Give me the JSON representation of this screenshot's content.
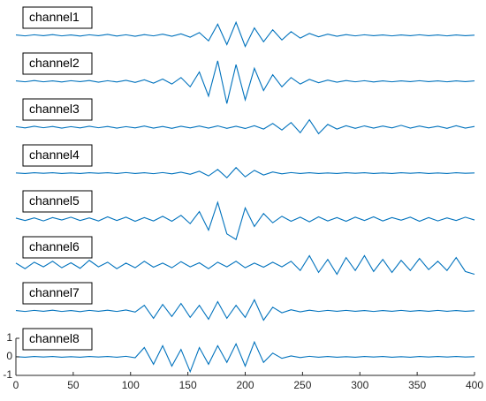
{
  "chart_data": {
    "type": "line",
    "x": [
      0,
      8,
      16,
      24,
      32,
      40,
      48,
      56,
      64,
      72,
      80,
      88,
      96,
      104,
      112,
      120,
      128,
      136,
      144,
      152,
      160,
      168,
      176,
      184,
      192,
      200,
      208,
      216,
      224,
      232,
      240,
      248,
      256,
      264,
      272,
      280,
      288,
      296,
      304,
      312,
      320,
      328,
      336,
      344,
      352,
      360,
      368,
      376,
      384,
      392,
      400
    ],
    "series": [
      {
        "name": "channel1",
        "color": "#0072bd",
        "values": [
          0.02,
          -0.03,
          0.03,
          -0.02,
          0.04,
          -0.03,
          0.02,
          -0.04,
          0.03,
          -0.02,
          0.05,
          -0.04,
          0.03,
          -0.05,
          0.04,
          -0.03,
          0.06,
          -0.05,
          0.08,
          -0.1,
          0.15,
          -0.3,
          0.6,
          -0.5,
          0.7,
          -0.6,
          0.4,
          -0.35,
          0.3,
          -0.25,
          0.2,
          -0.15,
          0.1,
          -0.08,
          0.06,
          -0.05,
          0.04,
          -0.03,
          0.03,
          -0.02,
          0.02,
          -0.03,
          0.02,
          -0.02,
          0.03,
          -0.02,
          0.02,
          -0.03,
          0.02,
          -0.02,
          0.01
        ]
      },
      {
        "name": "channel2",
        "color": "#0072bd",
        "values": [
          0.02,
          -0.03,
          0.04,
          -0.03,
          0.02,
          -0.04,
          0.03,
          -0.02,
          0.04,
          -0.05,
          0.03,
          -0.04,
          0.05,
          -0.06,
          0.08,
          -0.1,
          0.12,
          -0.15,
          0.2,
          -0.3,
          0.5,
          -0.8,
          1.1,
          -1.2,
          0.9,
          -1.0,
          0.7,
          -0.5,
          0.35,
          -0.3,
          0.2,
          -0.15,
          0.1,
          -0.08,
          0.06,
          -0.05,
          0.04,
          -0.03,
          0.03,
          -0.04,
          0.02,
          -0.03,
          0.02,
          -0.02,
          0.03,
          -0.02,
          0.02,
          -0.03,
          0.02,
          -0.02,
          0.02
        ]
      },
      {
        "name": "channel3",
        "color": "#0072bd",
        "values": [
          0.03,
          -0.04,
          0.05,
          -0.03,
          0.04,
          -0.05,
          0.03,
          -0.04,
          0.05,
          -0.03,
          0.04,
          -0.05,
          0.03,
          -0.04,
          0.06,
          -0.05,
          0.04,
          -0.06,
          0.05,
          -0.04,
          0.06,
          -0.05,
          0.07,
          -0.06,
          0.05,
          -0.07,
          0.08,
          -0.1,
          0.2,
          -0.15,
          0.25,
          -0.3,
          0.4,
          -0.35,
          0.15,
          -0.1,
          0.08,
          -0.06,
          0.07,
          -0.05,
          0.06,
          -0.04,
          0.1,
          -0.05,
          0.06,
          -0.04,
          0.05,
          -0.06,
          0.08,
          -0.05,
          0.04
        ]
      },
      {
        "name": "channel4",
        "color": "#0072bd",
        "values": [
          0.01,
          -0.02,
          0.02,
          -0.01,
          0.02,
          -0.02,
          0.01,
          -0.02,
          0.02,
          -0.01,
          0.02,
          -0.02,
          0.03,
          -0.02,
          0.02,
          -0.03,
          0.03,
          -0.04,
          0.05,
          -0.06,
          0.1,
          -0.15,
          0.2,
          -0.25,
          0.3,
          -0.2,
          0.15,
          -0.1,
          0.06,
          -0.04,
          0.03,
          -0.02,
          0.02,
          -0.02,
          0.01,
          -0.02,
          0.02,
          -0.01,
          0.02,
          -0.02,
          0.01,
          -0.02,
          0.02,
          -0.01,
          0.02,
          -0.02,
          0.01,
          -0.02,
          0.02,
          -0.01,
          0.01
        ]
      },
      {
        "name": "channel5",
        "color": "#0072bd",
        "values": [
          0.05,
          -0.08,
          0.06,
          -0.1,
          0.08,
          -0.05,
          0.1,
          -0.08,
          0.06,
          -0.1,
          0.12,
          -0.08,
          0.1,
          -0.12,
          0.08,
          -0.1,
          0.15,
          -0.12,
          0.2,
          -0.25,
          0.4,
          -0.6,
          0.9,
          -0.8,
          -1.1,
          0.6,
          -0.4,
          0.3,
          -0.2,
          0.15,
          -0.12,
          0.1,
          -0.15,
          0.12,
          -0.1,
          0.08,
          -0.12,
          0.1,
          -0.08,
          0.12,
          -0.1,
          0.08,
          -0.06,
          0.1,
          -0.12,
          0.08,
          -0.1,
          0.06,
          -0.08,
          0.1,
          -0.05
        ]
      },
      {
        "name": "channel6",
        "color": "#0072bd",
        "values": [
          0.1,
          -0.2,
          0.15,
          -0.1,
          0.2,
          -0.15,
          0.12,
          -0.18,
          0.25,
          -0.1,
          0.15,
          -0.2,
          0.1,
          -0.15,
          0.2,
          -0.12,
          0.1,
          -0.15,
          0.18,
          -0.1,
          0.12,
          -0.2,
          0.15,
          -0.1,
          0.2,
          -0.15,
          0.1,
          -0.12,
          0.15,
          -0.1,
          0.2,
          -0.3,
          0.5,
          -0.4,
          0.3,
          -0.5,
          0.4,
          -0.3,
          0.5,
          -0.35,
          0.3,
          -0.4,
          0.25,
          -0.3,
          0.35,
          -0.25,
          0.2,
          -0.3,
          0.4,
          -0.35,
          -0.5
        ]
      },
      {
        "name": "channel7",
        "color": "#0072bd",
        "values": [
          0.02,
          -0.03,
          0.03,
          -0.02,
          0.04,
          -0.03,
          0.02,
          -0.04,
          0.03,
          -0.02,
          0.04,
          -0.03,
          0.05,
          -0.06,
          0.3,
          -0.4,
          0.35,
          -0.3,
          0.4,
          -0.35,
          0.3,
          -0.45,
          0.5,
          -0.4,
          0.3,
          -0.35,
          0.6,
          -0.5,
          0.2,
          -0.1,
          0.06,
          -0.05,
          0.04,
          -0.03,
          0.03,
          -0.02,
          0.03,
          -0.02,
          0.02,
          -0.03,
          0.02,
          -0.02,
          0.03,
          -0.02,
          0.02,
          -0.02,
          0.03,
          -0.02,
          0.02,
          -0.02,
          0.01
        ]
      },
      {
        "name": "channel8",
        "color": "#0072bd",
        "values": [
          0.01,
          -0.02,
          0.02,
          -0.01,
          0.02,
          -0.02,
          0.01,
          -0.02,
          0.02,
          -0.01,
          0.02,
          -0.02,
          0.03,
          -0.05,
          0.5,
          -0.4,
          0.6,
          -0.5,
          0.4,
          -0.8,
          0.5,
          -0.4,
          0.6,
          -0.3,
          0.7,
          -0.5,
          0.8,
          -0.3,
          0.2,
          -0.08,
          0.05,
          -0.04,
          0.03,
          -0.02,
          0.02,
          -0.02,
          0.01,
          -0.02,
          0.02,
          -0.01,
          0.02,
          -0.02,
          0.01,
          -0.02,
          0.02,
          -0.01,
          0.02,
          -0.01,
          0.02,
          -0.01,
          0.01
        ]
      }
    ],
    "xlim": [
      0,
      400
    ],
    "xticks": [
      0,
      50,
      100,
      150,
      200,
      250,
      300,
      350,
      400
    ],
    "ylim": [
      -1,
      1
    ],
    "yticks": [
      -1,
      0,
      1
    ]
  }
}
